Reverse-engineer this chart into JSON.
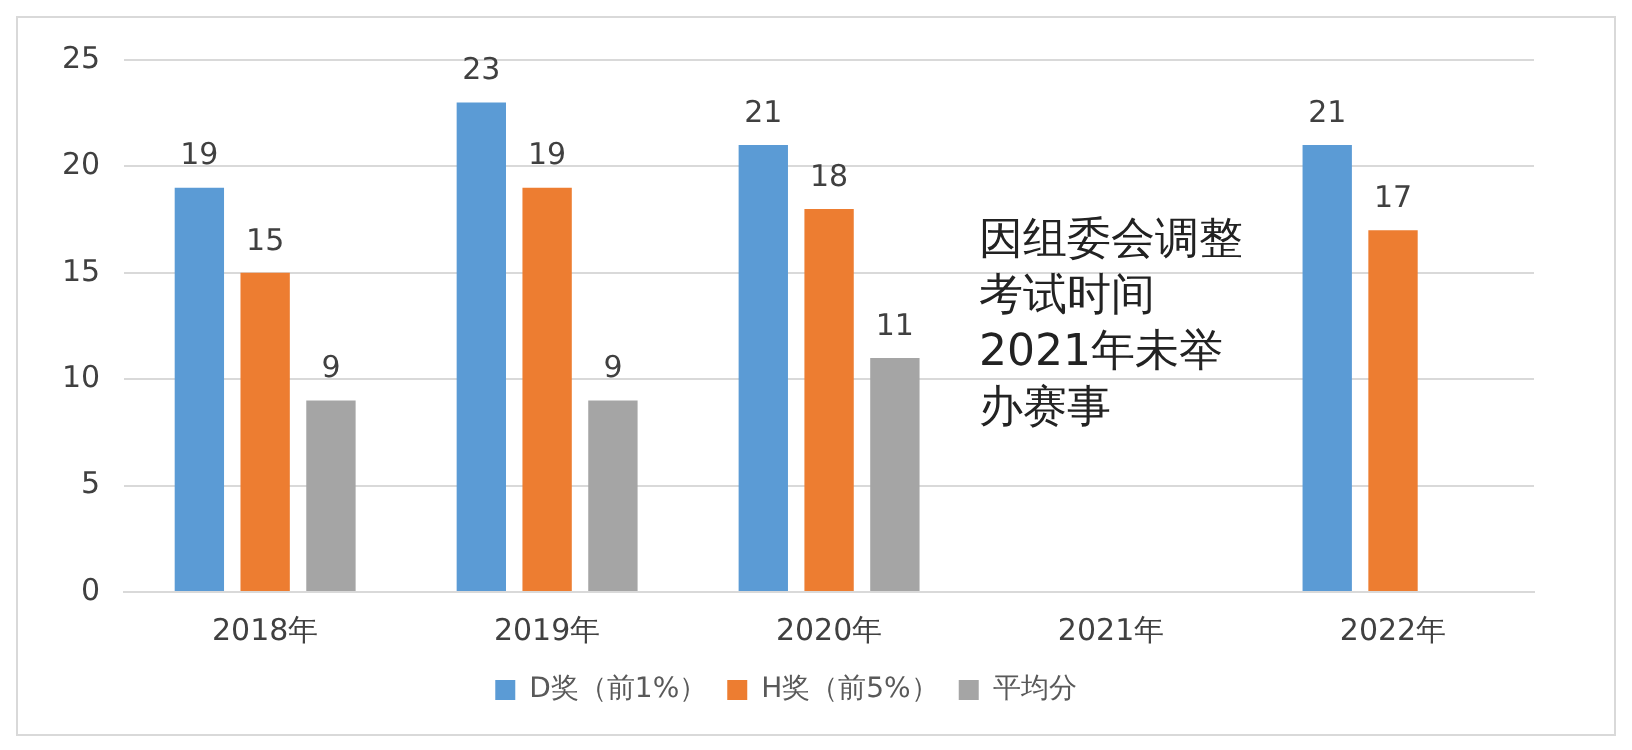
{
  "chart_data": {
    "type": "bar",
    "categories": [
      "2018年",
      "2019年",
      "2020年",
      "2021年",
      "2022年"
    ],
    "series": [
      {
        "name": "D奖（前1%）",
        "color": "#5b9bd5",
        "values": [
          19,
          23,
          21,
          null,
          21
        ]
      },
      {
        "name": "H奖（前5%）",
        "color": "#ed7d31",
        "values": [
          15,
          19,
          18,
          null,
          17
        ]
      },
      {
        "name": "平均分",
        "color": "#a5a5a5",
        "values": [
          9,
          9,
          11,
          null,
          null
        ]
      }
    ],
    "ylim": [
      0,
      25
    ],
    "yticks": [
      0,
      5,
      10,
      15,
      20,
      25
    ],
    "grid": "y",
    "legend": "bottom",
    "data_labels": true,
    "annotations": [
      "因组委会调整考试时间2021年未举办赛事"
    ]
  }
}
